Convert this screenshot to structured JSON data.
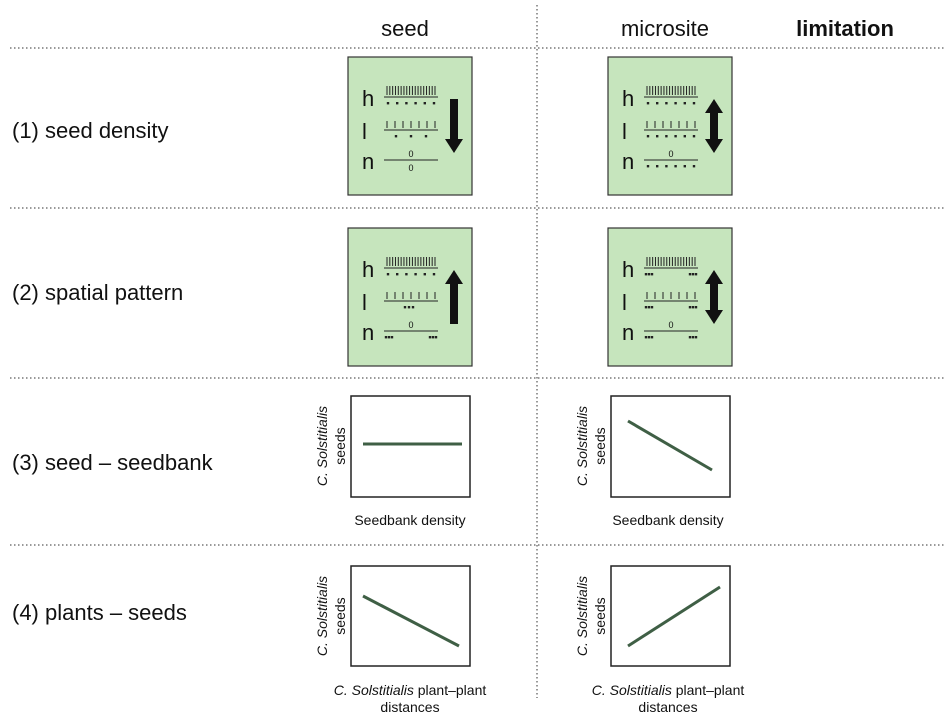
{
  "header": {
    "columns": [
      "seed",
      "microsite"
    ],
    "title": "limitation"
  },
  "rows": [
    "(1) seed density",
    "(2) spatial pattern",
    "(3) seed – seedbank",
    "(4) plants – seeds"
  ],
  "panels": {
    "levels": [
      "h",
      "l",
      "n"
    ],
    "zero": "0"
  },
  "graphs": {
    "y_label_species": "C. Solstitialis",
    "y_label": "seeds",
    "x_label_seedbank": "Seedbank density",
    "x_label_species": "C. Solstitialis",
    "x_label_plant": "plant–plant",
    "x_label_distances": "distances"
  }
}
